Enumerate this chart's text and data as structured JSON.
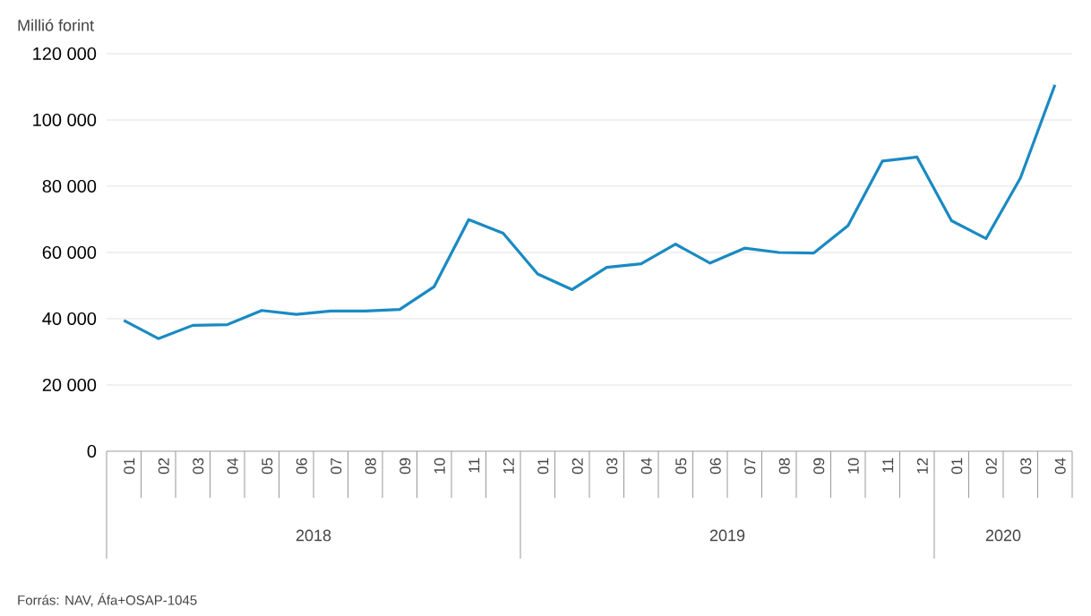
{
  "chart_data": {
    "type": "line",
    "ylabel": "Millió forint",
    "categories": [
      "01",
      "02",
      "03",
      "04",
      "05",
      "06",
      "07",
      "08",
      "09",
      "10",
      "11",
      "12",
      "01",
      "02",
      "03",
      "04",
      "05",
      "06",
      "07",
      "08",
      "09",
      "10",
      "11",
      "12",
      "01",
      "02",
      "03",
      "04"
    ],
    "series": [
      {
        "color": "#1a8ac2",
        "values": [
          39500,
          34000,
          38000,
          38200,
          42500,
          41300,
          42300,
          42300,
          42800,
          49700,
          69900,
          65800,
          53500,
          48800,
          55500,
          56600,
          62500,
          56800,
          61300,
          60000,
          59800,
          68100,
          87600,
          88800,
          69600,
          64200,
          82500,
          110600
        ]
      }
    ],
    "ylim": [
      0,
      120000
    ],
    "yticks": [
      {
        "value": 0,
        "label": "0"
      },
      {
        "value": 20000,
        "label": "20 000"
      },
      {
        "value": 40000,
        "label": "40 000"
      },
      {
        "value": 60000,
        "label": "60 000"
      },
      {
        "value": 80000,
        "label": "80 000"
      },
      {
        "value": 100000,
        "label": "100 000"
      },
      {
        "value": 120000,
        "label": "120 000"
      }
    ],
    "grid": "y",
    "marker": "none",
    "line_style": "solid",
    "annotations": [
      "2018",
      "2019",
      "2020",
      "Forrás: NAV, Áfa+OSAP-1045"
    ]
  }
}
